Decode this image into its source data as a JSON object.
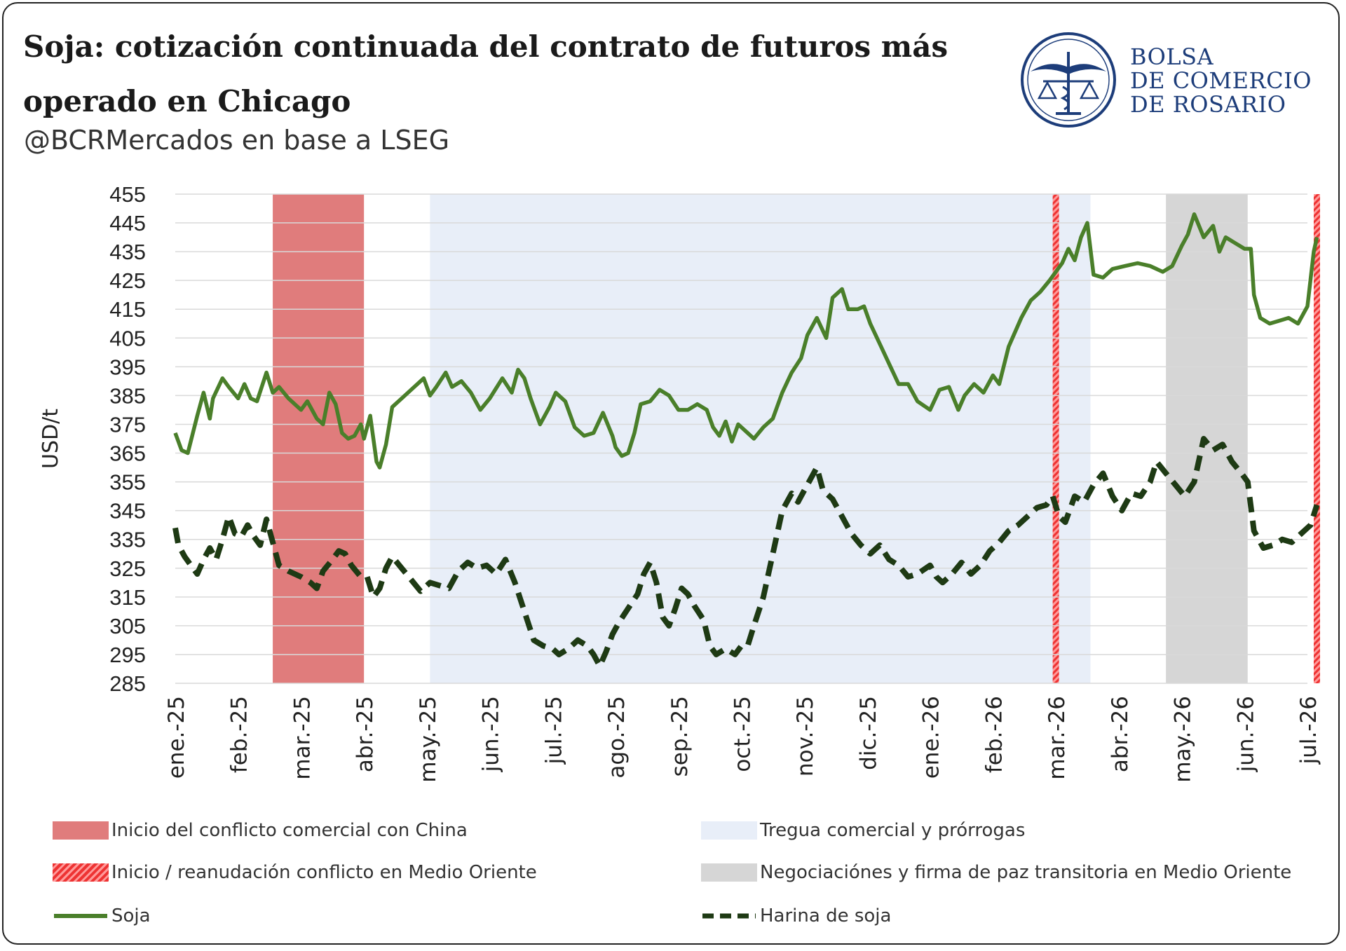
{
  "title": "Soja: cotización continuada del contrato de futuros más operado en Chicago",
  "subtitle": "@BCRMercados en base a LSEG",
  "logo": {
    "line1": "BOLSA",
    "line2": "DE COMERCIO",
    "line3": "DE ROSARIO"
  },
  "colors": {
    "soja": "#4a7f2a",
    "harina": "#1e3a14",
    "china": "#e07c7c",
    "tregua": "#e8eef8",
    "negociaciones": "#d6d6d6",
    "medio_oriente": "#ee3333",
    "brand": "#1d3d7a"
  },
  "legend": [
    {
      "label": "Inicio del conflicto comercial con China",
      "swatch": "china"
    },
    {
      "label": "Tregua comercial y prórrogas",
      "swatch": "tregua"
    },
    {
      "label": "Inicio / reanudación conflicto en Medio Oriente",
      "swatch": "medio_oriente"
    },
    {
      "label": "Negociaciónes y firma de paz transitoria en Medio Oriente",
      "swatch": "negociaciones"
    },
    {
      "label": "Soja",
      "swatch": "soja"
    },
    {
      "label": "Harina de soja",
      "swatch": "harina"
    }
  ],
  "chart_data": {
    "type": "line",
    "ylabel": "USD/t",
    "ylim": [
      285,
      455
    ],
    "yticks": [
      285,
      295,
      305,
      315,
      325,
      335,
      345,
      355,
      365,
      375,
      385,
      395,
      405,
      415,
      425,
      435,
      445,
      455
    ],
    "grid": true,
    "xticks": [
      "ene.-25",
      "feb.-25",
      "mar.-25",
      "abr.-25",
      "may.-25",
      "jun.-25",
      "jul.-25",
      "ago.-25",
      "sep.-25",
      "oct.-25",
      "nov.-25",
      "dic.-25",
      "ene.-26",
      "feb.-26",
      "mar.-26",
      "abr.-26",
      "may.-26",
      "jun.-26",
      "jul.-26"
    ],
    "shaded_periods": [
      {
        "name": "Inicio del conflicto comercial con China",
        "from": 1.55,
        "to": 3.0
      },
      {
        "name": "Tregua comercial y prórrogas",
        "from": 4.05,
        "to": 14.55
      },
      {
        "name": "Inicio / reanudación conflicto en Medio Oriente",
        "from": 13.95,
        "to": 14.05
      },
      {
        "name": "Negociaciónes y firma de paz transitoria en Medio Oriente",
        "from": 15.75,
        "to": 17.05
      },
      {
        "name": "Inicio / reanudación conflicto en Medio Oriente",
        "from": 18.1,
        "to": 18.2
      }
    ],
    "series": [
      {
        "name": "Soja",
        "style": "solid",
        "points": [
          [
            0.0,
            372
          ],
          [
            0.1,
            366
          ],
          [
            0.2,
            365
          ],
          [
            0.35,
            378
          ],
          [
            0.45,
            386
          ],
          [
            0.55,
            377
          ],
          [
            0.6,
            384
          ],
          [
            0.75,
            391
          ],
          [
            0.85,
            388
          ],
          [
            1.0,
            384
          ],
          [
            1.1,
            389
          ],
          [
            1.2,
            384
          ],
          [
            1.3,
            383
          ],
          [
            1.45,
            393
          ],
          [
            1.55,
            386
          ],
          [
            1.65,
            388
          ],
          [
            1.8,
            384
          ],
          [
            2.0,
            380
          ],
          [
            2.1,
            383
          ],
          [
            2.25,
            377
          ],
          [
            2.35,
            375
          ],
          [
            2.45,
            386
          ],
          [
            2.55,
            382
          ],
          [
            2.65,
            372
          ],
          [
            2.75,
            370
          ],
          [
            2.85,
            371
          ],
          [
            2.95,
            375
          ],
          [
            3.0,
            370
          ],
          [
            3.1,
            378
          ],
          [
            3.2,
            362
          ],
          [
            3.25,
            360
          ],
          [
            3.35,
            368
          ],
          [
            3.45,
            381
          ],
          [
            3.6,
            384
          ],
          [
            3.8,
            388
          ],
          [
            3.95,
            391
          ],
          [
            4.05,
            385
          ],
          [
            4.15,
            388
          ],
          [
            4.3,
            393
          ],
          [
            4.4,
            388
          ],
          [
            4.55,
            390
          ],
          [
            4.7,
            386
          ],
          [
            4.85,
            380
          ],
          [
            5.0,
            384
          ],
          [
            5.2,
            391
          ],
          [
            5.35,
            386
          ],
          [
            5.45,
            394
          ],
          [
            5.55,
            391
          ],
          [
            5.65,
            384
          ],
          [
            5.8,
            375
          ],
          [
            5.95,
            381
          ],
          [
            6.05,
            386
          ],
          [
            6.2,
            383
          ],
          [
            6.35,
            374
          ],
          [
            6.5,
            371
          ],
          [
            6.65,
            372
          ],
          [
            6.8,
            379
          ],
          [
            6.95,
            371
          ],
          [
            7.0,
            367
          ],
          [
            7.1,
            364
          ],
          [
            7.2,
            365
          ],
          [
            7.3,
            372
          ],
          [
            7.4,
            382
          ],
          [
            7.55,
            383
          ],
          [
            7.7,
            387
          ],
          [
            7.85,
            385
          ],
          [
            8.0,
            380
          ],
          [
            8.15,
            380
          ],
          [
            8.3,
            382
          ],
          [
            8.45,
            380
          ],
          [
            8.55,
            374
          ],
          [
            8.65,
            371
          ],
          [
            8.75,
            376
          ],
          [
            8.85,
            369
          ],
          [
            8.95,
            375
          ],
          [
            9.1,
            372
          ],
          [
            9.2,
            370
          ],
          [
            9.35,
            374
          ],
          [
            9.5,
            377
          ],
          [
            9.65,
            386
          ],
          [
            9.8,
            393
          ],
          [
            9.95,
            398
          ],
          [
            10.05,
            406
          ],
          [
            10.2,
            412
          ],
          [
            10.35,
            405
          ],
          [
            10.45,
            419
          ],
          [
            10.6,
            422
          ],
          [
            10.7,
            415
          ],
          [
            10.85,
            415
          ],
          [
            10.95,
            416
          ],
          [
            11.05,
            410
          ],
          [
            11.2,
            403
          ],
          [
            11.35,
            396
          ],
          [
            11.5,
            389
          ],
          [
            11.65,
            389
          ],
          [
            11.8,
            383
          ],
          [
            12.0,
            380
          ],
          [
            12.15,
            387
          ],
          [
            12.3,
            388
          ],
          [
            12.45,
            380
          ],
          [
            12.55,
            385
          ],
          [
            12.7,
            389
          ],
          [
            12.85,
            386
          ],
          [
            13.0,
            392
          ],
          [
            13.1,
            389
          ],
          [
            13.25,
            402
          ],
          [
            13.45,
            412
          ],
          [
            13.6,
            418
          ],
          [
            13.75,
            421
          ],
          [
            13.9,
            425
          ],
          [
            14.0,
            428
          ],
          [
            14.1,
            431
          ],
          [
            14.2,
            436
          ],
          [
            14.3,
            432
          ],
          [
            14.4,
            440
          ],
          [
            14.5,
            445
          ],
          [
            14.6,
            427
          ],
          [
            14.75,
            426
          ],
          [
            14.9,
            429
          ],
          [
            15.1,
            430
          ],
          [
            15.3,
            431
          ],
          [
            15.5,
            430
          ],
          [
            15.7,
            428
          ],
          [
            15.85,
            430
          ],
          [
            16.0,
            437
          ],
          [
            16.1,
            441
          ],
          [
            16.2,
            448
          ],
          [
            16.35,
            440
          ],
          [
            16.5,
            444
          ],
          [
            16.6,
            435
          ],
          [
            16.7,
            440
          ],
          [
            16.85,
            438
          ],
          [
            17.0,
            436
          ],
          [
            17.1,
            436
          ],
          [
            17.15,
            420
          ],
          [
            17.25,
            412
          ],
          [
            17.4,
            410
          ],
          [
            17.55,
            411
          ],
          [
            17.7,
            412
          ],
          [
            17.85,
            410
          ],
          [
            18.0,
            416
          ],
          [
            18.1,
            435
          ],
          [
            18.15,
            440
          ]
        ]
      },
      {
        "name": "Harina de soja",
        "style": "dashed",
        "points": [
          [
            0.0,
            339
          ],
          [
            0.05,
            333
          ],
          [
            0.15,
            329
          ],
          [
            0.25,
            326
          ],
          [
            0.35,
            323
          ],
          [
            0.45,
            328
          ],
          [
            0.55,
            332
          ],
          [
            0.65,
            328
          ],
          [
            0.75,
            335
          ],
          [
            0.85,
            343
          ],
          [
            0.95,
            337
          ],
          [
            1.05,
            336
          ],
          [
            1.15,
            340
          ],
          [
            1.25,
            336
          ],
          [
            1.35,
            333
          ],
          [
            1.45,
            342
          ],
          [
            1.55,
            334
          ],
          [
            1.65,
            326
          ],
          [
            1.8,
            324
          ],
          [
            2.0,
            322
          ],
          [
            2.15,
            320
          ],
          [
            2.25,
            318
          ],
          [
            2.35,
            324
          ],
          [
            2.5,
            328
          ],
          [
            2.6,
            331
          ],
          [
            2.7,
            330
          ],
          [
            2.8,
            326
          ],
          [
            2.95,
            322
          ],
          [
            3.05,
            322
          ],
          [
            3.15,
            315
          ],
          [
            3.25,
            318
          ],
          [
            3.35,
            325
          ],
          [
            3.45,
            329
          ],
          [
            3.6,
            325
          ],
          [
            3.75,
            321
          ],
          [
            3.9,
            317
          ],
          [
            4.05,
            320
          ],
          [
            4.2,
            319
          ],
          [
            4.35,
            318
          ],
          [
            4.5,
            324
          ],
          [
            4.65,
            327
          ],
          [
            4.8,
            325
          ],
          [
            4.95,
            326
          ],
          [
            5.1,
            323
          ],
          [
            5.25,
            328
          ],
          [
            5.4,
            320
          ],
          [
            5.55,
            310
          ],
          [
            5.7,
            300
          ],
          [
            5.85,
            298
          ],
          [
            6.0,
            297
          ],
          [
            6.1,
            295
          ],
          [
            6.25,
            297
          ],
          [
            6.4,
            300
          ],
          [
            6.55,
            298
          ],
          [
            6.65,
            295
          ],
          [
            6.75,
            291
          ],
          [
            6.85,
            296
          ],
          [
            6.95,
            302
          ],
          [
            7.05,
            306
          ],
          [
            7.2,
            311
          ],
          [
            7.35,
            316
          ],
          [
            7.45,
            323
          ],
          [
            7.55,
            327
          ],
          [
            7.65,
            320
          ],
          [
            7.75,
            308
          ],
          [
            7.85,
            305
          ],
          [
            7.95,
            311
          ],
          [
            8.05,
            318
          ],
          [
            8.15,
            316
          ],
          [
            8.25,
            312
          ],
          [
            8.4,
            307
          ],
          [
            8.5,
            298
          ],
          [
            8.6,
            295
          ],
          [
            8.75,
            297
          ],
          [
            8.9,
            295
          ],
          [
            9.0,
            298
          ],
          [
            9.1,
            298
          ],
          [
            9.2,
            305
          ],
          [
            9.35,
            315
          ],
          [
            9.5,
            330
          ],
          [
            9.65,
            345
          ],
          [
            9.8,
            351
          ],
          [
            9.9,
            348
          ],
          [
            10.0,
            352
          ],
          [
            10.1,
            356
          ],
          [
            10.2,
            360
          ],
          [
            10.3,
            352
          ],
          [
            10.45,
            349
          ],
          [
            10.6,
            343
          ],
          [
            10.75,
            337
          ],
          [
            10.9,
            333
          ],
          [
            11.05,
            330
          ],
          [
            11.2,
            333
          ],
          [
            11.35,
            328
          ],
          [
            11.5,
            326
          ],
          [
            11.65,
            322
          ],
          [
            11.8,
            323
          ],
          [
            12.0,
            326
          ],
          [
            12.1,
            322
          ],
          [
            12.2,
            320
          ],
          [
            12.35,
            323
          ],
          [
            12.5,
            327
          ],
          [
            12.65,
            323
          ],
          [
            12.8,
            326
          ],
          [
            12.95,
            331
          ],
          [
            13.1,
            334
          ],
          [
            13.25,
            338
          ],
          [
            13.4,
            340
          ],
          [
            13.55,
            343
          ],
          [
            13.7,
            346
          ],
          [
            13.85,
            347
          ],
          [
            13.95,
            350
          ],
          [
            14.05,
            343
          ],
          [
            14.15,
            341
          ],
          [
            14.3,
            350
          ],
          [
            14.45,
            348
          ],
          [
            14.6,
            354
          ],
          [
            14.75,
            358
          ],
          [
            14.9,
            350
          ],
          [
            15.05,
            345
          ],
          [
            15.2,
            351
          ],
          [
            15.35,
            350
          ],
          [
            15.5,
            355
          ],
          [
            15.6,
            362
          ],
          [
            15.75,
            358
          ],
          [
            15.9,
            354
          ],
          [
            16.05,
            350
          ],
          [
            16.2,
            355
          ],
          [
            16.35,
            370
          ],
          [
            16.5,
            366
          ],
          [
            16.65,
            368
          ],
          [
            16.8,
            362
          ],
          [
            16.95,
            358
          ],
          [
            17.05,
            355
          ],
          [
            17.15,
            338
          ],
          [
            17.3,
            332
          ],
          [
            17.45,
            333
          ],
          [
            17.6,
            335
          ],
          [
            17.75,
            334
          ],
          [
            17.9,
            337
          ],
          [
            18.05,
            340
          ],
          [
            18.15,
            347
          ]
        ]
      }
    ]
  }
}
